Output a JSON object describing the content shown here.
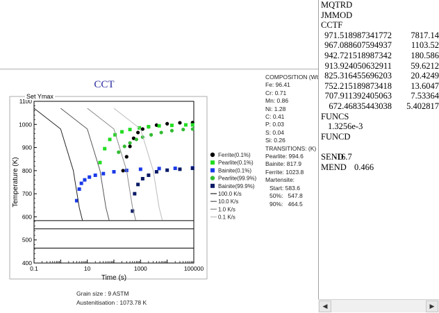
{
  "chart": {
    "title": "CCT",
    "set_ymax_label": "Set Ymax",
    "xlabel": "Time (s)",
    "ylabel": "Temperature (K)",
    "x_ticks": [
      "0.1",
      "10",
      "1000",
      "100000"
    ],
    "y_ticks": [
      "400",
      "500",
      "600",
      "700",
      "800",
      "900",
      "1000",
      "1100"
    ],
    "grain_size": "Grain size : 9 ASTM",
    "austenitisation": "Austenitisation : 1073.78 K"
  },
  "composition": {
    "heading": "COMPOSITION (Wt%)",
    "items": [
      "Fe: 96.41",
      "Cr: 0.71",
      "Mn: 0.86",
      "Ni: 1.28",
      "C: 0.41",
      "P: 0.03",
      "S: 0.04",
      "Si: 0.26"
    ],
    "transitions_heading": "TRANSITIONS: (K)",
    "transitions": [
      "Pearlite: 994.6",
      "Bainite: 817.9",
      "Ferrite: 1023.8"
    ],
    "martensite_heading": "Martensite:",
    "martensite": [
      "Start: 583.6",
      "50%:   547.8",
      "90%:   464.5"
    ]
  },
  "chart_data": {
    "type": "line",
    "title": "CCT",
    "xlabel": "Time (s)",
    "ylabel": "Temperature (K)",
    "xscale": "log",
    "xlim": [
      0.1,
      100000
    ],
    "ylim": [
      400,
      1100
    ],
    "legend_position": "right",
    "horizontal_lines": [
      583.6,
      547.8,
      464.5
    ],
    "series": [
      {
        "name": "Ferrite(0.1%)",
        "color": "#000000",
        "marker": "circle",
        "x": [
          220,
          300,
          400,
          550,
          800,
          1200,
          2000,
          4000,
          10000,
          30000,
          90000
        ],
        "y": [
          800,
          860,
          905,
          940,
          965,
          980,
          990,
          997,
          1003,
          1007,
          1008
        ]
      },
      {
        "name": "Pearlite(0.1%)",
        "color": "#22dd22",
        "marker": "square",
        "x": [
          30,
          45,
          70,
          110,
          200,
          400,
          900,
          2000,
          5000,
          15000,
          50000,
          90000
        ],
        "y": [
          835,
          895,
          935,
          955,
          968,
          978,
          985,
          990,
          994,
          996,
          998,
          998
        ]
      },
      {
        "name": "Bainite(0.1%)",
        "color": "#1a3ae8",
        "marker": "square",
        "x": [
          4,
          5,
          6,
          8,
          12,
          20,
          40,
          100,
          300,
          1000,
          5000,
          20000,
          90000
        ],
        "y": [
          670,
          720,
          745,
          760,
          772,
          780,
          787,
          795,
          801,
          806,
          809,
          810,
          812
        ]
      },
      {
        "name": "Pearlite(99.9%)",
        "color": "#33bb33",
        "marker": "circle",
        "x": [
          150,
          250,
          400,
          700,
          1200,
          2500,
          6000,
          15000,
          40000,
          90000
        ],
        "y": [
          880,
          905,
          920,
          935,
          945,
          955,
          965,
          973,
          978,
          980
        ]
      },
      {
        "name": "Bainite(99.9%)",
        "color": "#0a1a66",
        "marker": "square",
        "x": [
          500,
          600,
          800,
          1200,
          2000,
          4000,
          10000,
          30000,
          90000
        ],
        "y": [
          625,
          700,
          740,
          765,
          780,
          795,
          802,
          806,
          810
        ]
      },
      {
        "name": "100.0 K/s",
        "color": "#222222",
        "marker": "none",
        "x": [
          0.1,
          1,
          3,
          5,
          6.6
        ],
        "y": [
          1070,
          980,
          800,
          640,
          585
        ]
      },
      {
        "name": "10.0 K/s",
        "color": "#555555",
        "marker": "none",
        "x": [
          1,
          10,
          30,
          50,
          66
        ],
        "y": [
          1070,
          980,
          800,
          640,
          585
        ]
      },
      {
        "name": "1.0 K/s",
        "color": "#888888",
        "marker": "none",
        "x": [
          10,
          100,
          300,
          500,
          660
        ],
        "y": [
          1070,
          980,
          800,
          640,
          585
        ]
      },
      {
        "name": "0.1 K/s",
        "color": "#bbbbbb",
        "marker": "none",
        "x": [
          100,
          1000,
          3000,
          5000,
          6600
        ],
        "y": [
          1070,
          980,
          800,
          640,
          585
        ]
      }
    ]
  },
  "text_panel": {
    "line1": "MQTRD",
    "line2": "JMMOD",
    "line3": "CCTF",
    "cctf_rows": [
      [
        "971.518987341772",
        "7817.14"
      ],
      [
        "967.088607594937",
        "1103.52"
      ],
      [
        "942.721518987342",
        "180.586"
      ],
      [
        "913.924050632911",
        "59.6212"
      ],
      [
        "825.316455696203",
        "20.4249"
      ],
      [
        "752.215189873418",
        "13.6047"
      ],
      [
        "707.911392405063",
        "7.53364"
      ],
      [
        "672.46835443038",
        "5.402817"
      ]
    ],
    "funcs_label": "FUNCS",
    "funcs_value": "1.3256e-3",
    "funcd_label": "FUNCD",
    "funcd_value_a": "-16.7",
    "funcd_value_b": "0.466",
    "send_label": "SEND",
    "mend_label": "MEND"
  },
  "scrollbar": {
    "left_arrow": "◀",
    "right_arrow": "▶"
  }
}
